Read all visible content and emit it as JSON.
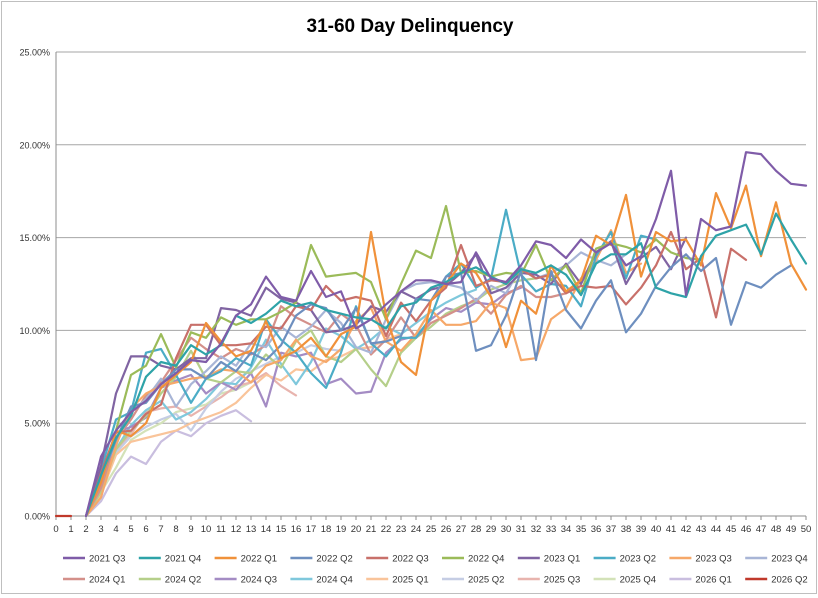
{
  "chart_data": {
    "type": "line",
    "title": "31-60 Day Delinquency",
    "xlabel": "",
    "ylabel": "",
    "x": [
      0,
      1,
      2,
      3,
      4,
      5,
      6,
      7,
      8,
      9,
      10,
      11,
      12,
      13,
      14,
      15,
      16,
      17,
      18,
      19,
      20,
      21,
      22,
      23,
      24,
      25,
      26,
      27,
      28,
      29,
      30,
      31,
      32,
      33,
      34,
      35,
      36,
      37,
      38,
      39,
      40,
      41,
      42,
      43,
      44,
      45,
      46,
      47,
      48,
      49,
      50
    ],
    "xlim": [
      0,
      50
    ],
    "ylim": [
      0,
      25
    ],
    "yticks": [
      0,
      5,
      10,
      15,
      20,
      25
    ],
    "ytick_labels": [
      "0.00%",
      "5.00%",
      "10.00%",
      "15.00%",
      "20.00%",
      "25.00%"
    ],
    "grid": "horizontal",
    "legend_position": "bottom",
    "series": [
      {
        "name": "2021 Q3",
        "color": "#7f5ca8",
        "values": [
          null,
          null,
          0,
          3.2,
          4.6,
          5.6,
          6.2,
          7.1,
          7.7,
          8.4,
          8.3,
          9.3,
          10.8,
          11.4,
          12.9,
          11.8,
          11.6,
          13.2,
          11.8,
          12.1,
          10.1,
          10.6,
          11.4,
          12.1,
          12.7,
          12.7,
          12.5,
          12.6,
          14.2,
          12.8,
          12.6,
          13.5,
          14.8,
          14.6,
          13.9,
          14.9,
          14.2,
          14.7,
          13.5,
          14.0,
          16.0,
          18.6,
          11.9,
          16.0,
          15.4,
          15.6,
          19.6,
          19.5,
          18.6,
          17.9,
          17.8
        ]
      },
      {
        "name": "2021 Q4",
        "color": "#2ea3a8",
        "values": [
          null,
          null,
          0,
          2.2,
          4.2,
          5.4,
          7.5,
          8.3,
          8.1,
          9.2,
          8.7,
          9.2,
          10.8,
          10.4,
          10.9,
          11.6,
          11.3,
          11.5,
          11.1,
          10.9,
          10.7,
          10.6,
          10.1,
          11.3,
          11.5,
          12.3,
          12.6,
          13.1,
          13.4,
          12.9,
          12.5,
          13.3,
          13.1,
          13.5,
          13.0,
          11.9,
          13.6,
          14.1,
          14.1,
          14.7,
          12.3,
          12.0,
          11.8,
          14.0,
          15.1,
          15.4,
          15.7,
          14.1,
          16.3,
          14.9,
          13.6
        ]
      },
      {
        "name": "2022 Q1",
        "color": "#f0913a",
        "values": [
          null,
          null,
          0,
          1.8,
          4.6,
          4.3,
          5.0,
          6.9,
          7.6,
          8.3,
          10.4,
          9.4,
          8.6,
          8.9,
          10.5,
          8.5,
          8.9,
          9.6,
          8.6,
          9.8,
          10.2,
          15.3,
          10.8,
          8.3,
          7.6,
          11.6,
          12.5,
          13.6,
          13.1,
          11.8,
          9.1,
          11.6,
          10.9,
          13.5,
          12.1,
          12.7,
          15.1,
          14.6,
          17.3,
          12.9,
          15.3,
          14.8,
          14.9,
          13.5,
          17.4,
          15.5,
          17.8,
          14.0,
          16.9,
          13.6,
          12.2
        ]
      },
      {
        "name": "2022 Q2",
        "color": "#6e8fbf",
        "values": [
          null,
          null,
          0,
          2.0,
          4.1,
          5.9,
          6.1,
          7.1,
          7.9,
          7.9,
          7.4,
          8.3,
          7.8,
          8.8,
          8.4,
          9.2,
          10.8,
          11.4,
          11.2,
          10.0,
          11.2,
          9.3,
          9.4,
          9.7,
          11.7,
          11.6,
          12.9,
          13.1,
          8.9,
          9.2,
          10.8,
          13.2,
          8.4,
          13.2,
          11.1,
          10.1,
          11.6,
          12.7,
          9.9,
          10.9,
          12.4,
          13.4,
          14.1,
          13.2,
          13.9,
          10.3,
          12.6,
          12.3,
          13.0,
          13.5,
          null
        ]
      },
      {
        "name": "2022 Q3",
        "color": "#c8706a",
        "values": [
          null,
          null,
          0,
          2.3,
          4.5,
          4.6,
          5.5,
          6.0,
          8.5,
          10.3,
          10.3,
          9.2,
          9.2,
          9.3,
          10.2,
          10.1,
          11.3,
          11.1,
          12.4,
          11.6,
          11.8,
          11.6,
          9.7,
          11.5,
          10.5,
          11.6,
          12.3,
          14.6,
          12.4,
          12.7,
          12.6,
          13.3,
          12.8,
          13.0,
          12.0,
          12.4,
          12.3,
          12.4,
          11.4,
          12.3,
          13.5,
          15.3,
          13.3,
          13.9,
          10.7,
          14.4,
          13.8,
          null,
          null,
          null,
          null
        ]
      },
      {
        "name": "2022 Q4",
        "color": "#9bbb59",
        "values": [
          null,
          null,
          0,
          1.9,
          4.6,
          7.6,
          8.1,
          9.8,
          8.0,
          9.9,
          9.6,
          10.7,
          10.3,
          10.6,
          10.6,
          11.0,
          11.5,
          14.6,
          12.9,
          13.0,
          13.1,
          12.6,
          10.6,
          12.5,
          14.3,
          13.9,
          16.7,
          13.1,
          13.2,
          12.9,
          13.1,
          13.0,
          14.6,
          12.7,
          13.5,
          12.0,
          14.4,
          14.7,
          14.5,
          14.2,
          14.9,
          14.2,
          13.9,
          13.8,
          null,
          null,
          null,
          null,
          null,
          null,
          null
        ]
      },
      {
        "name": "2023 Q1",
        "color": "#8064a2",
        "values": [
          null,
          null,
          0,
          2.7,
          6.6,
          8.6,
          8.6,
          8.1,
          7.9,
          8.5,
          8.5,
          11.2,
          11.1,
          10.8,
          12.3,
          11.7,
          11.5,
          11.1,
          9.9,
          10.0,
          10.3,
          11.3,
          11.0,
          12.1,
          11.7,
          12.2,
          12.4,
          13.1,
          14.1,
          12.0,
          12.3,
          13.1,
          13.0,
          12.5,
          13.6,
          12.5,
          14.2,
          14.8,
          12.5,
          13.9,
          14.5,
          13.3,
          15.0,
          null,
          null,
          null,
          null,
          null,
          null,
          null,
          null
        ]
      },
      {
        "name": "2023 Q2",
        "color": "#4bacc6",
        "values": [
          null,
          null,
          0,
          2.5,
          5.2,
          5.6,
          8.8,
          9.0,
          7.6,
          6.1,
          7.4,
          7.8,
          8.5,
          8.1,
          10.6,
          9.5,
          8.8,
          7.7,
          6.9,
          8.8,
          11.3,
          9.3,
          8.6,
          9.6,
          9.6,
          10.7,
          12.9,
          13.6,
          12.3,
          12.8,
          16.5,
          13.0,
          12.1,
          12.5,
          12.4,
          11.3,
          14.0,
          15.3,
          12.8,
          15.1,
          14.9,
          null,
          null,
          null,
          null,
          null,
          null,
          null,
          null,
          null,
          null
        ]
      },
      {
        "name": "2023 Q3",
        "color": "#f6a869",
        "values": [
          null,
          null,
          0,
          1.0,
          3.8,
          5.8,
          6.6,
          7.0,
          7.2,
          7.4,
          7.5,
          7.9,
          7.8,
          7.2,
          8.1,
          8.4,
          9.5,
          8.6,
          8.3,
          9.0,
          10.5,
          11.2,
          9.4,
          8.9,
          9.8,
          11.1,
          10.3,
          10.3,
          10.5,
          11.5,
          11.2,
          8.4,
          8.5,
          10.6,
          11.2,
          12.8,
          13.8,
          15.4,
          13.1,
          13.6,
          null,
          null,
          null,
          null,
          null,
          null,
          null,
          null,
          null,
          null,
          null
        ]
      },
      {
        "name": "2023 Q4",
        "color": "#a8b5d6",
        "values": [
          null,
          null,
          0,
          2.2,
          3.9,
          5.6,
          6.3,
          7.4,
          5.9,
          7.1,
          7.8,
          8.6,
          8.1,
          9.3,
          9.1,
          10.2,
          9.6,
          10.2,
          11.1,
          10.4,
          9.1,
          8.8,
          10.6,
          12.1,
          12.5,
          12.6,
          12.5,
          12.3,
          11.6,
          12.4,
          12.0,
          13.4,
          12.8,
          13.1,
          13.5,
          14.2,
          13.8,
          13.5,
          14.1,
          null,
          null,
          null,
          null,
          null,
          null,
          null,
          null,
          null,
          null,
          null,
          null
        ]
      },
      {
        "name": "2024 Q1",
        "color": "#d4908a",
        "values": [
          null,
          null,
          0,
          1.5,
          4.1,
          5.2,
          6.5,
          7.2,
          8.4,
          9.6,
          9.0,
          8.5,
          9.0,
          8.7,
          9.2,
          11.3,
          10.7,
          10.3,
          9.9,
          10.9,
          10.3,
          8.7,
          9.5,
          10.7,
          9.6,
          10.4,
          10.8,
          11.2,
          11.7,
          10.9,
          11.9,
          12.4,
          11.8,
          11.8,
          12.0,
          12.6,
          13.7,
          null,
          null,
          null,
          null,
          null,
          null,
          null,
          null,
          null,
          null,
          null,
          null,
          null,
          null
        ]
      },
      {
        "name": "2024 Q2",
        "color": "#b5cf8a",
        "values": [
          null,
          null,
          0,
          1.3,
          3.6,
          4.6,
          5.4,
          6.6,
          7.5,
          8.9,
          7.4,
          7.2,
          7.8,
          7.7,
          8.7,
          8.0,
          9.4,
          10.0,
          8.6,
          8.3,
          9.0,
          7.9,
          7.0,
          8.8,
          9.6,
          10.2,
          10.9,
          11.3,
          11.6,
          12.2,
          12.5,
          12.7,
          12.8,
          13.0,
          null,
          null,
          null,
          null,
          null,
          null,
          null,
          null,
          null,
          null,
          null,
          null,
          null,
          null,
          null,
          null,
          null
        ]
      },
      {
        "name": "2024 Q3",
        "color": "#a48cc4",
        "values": [
          null,
          null,
          0,
          1.7,
          4.5,
          4.8,
          5.3,
          6.9,
          7.3,
          7.6,
          6.6,
          7.2,
          6.8,
          7.7,
          5.9,
          8.8,
          8.6,
          8.8,
          7.1,
          7.4,
          6.6,
          6.7,
          8.8,
          9.5,
          9.7,
          10.6,
          11.2,
          11.0,
          11.5,
          11.4,
          12.0,
          12.3,
          null,
          null,
          null,
          null,
          null,
          null,
          null,
          null,
          null,
          null,
          null,
          null,
          null,
          null,
          null,
          null,
          null,
          null,
          null
        ]
      },
      {
        "name": "2024 Q4",
        "color": "#7fc8dc",
        "values": [
          null,
          null,
          0,
          1.6,
          3.6,
          4.9,
          5.7,
          6.2,
          5.2,
          5.6,
          6.3,
          7.2,
          7.1,
          8.0,
          9.5,
          8.2,
          7.1,
          8.3,
          10.1,
          9.7,
          9.0,
          9.5,
          10.2,
          9.8,
          10.4,
          11.0,
          11.5,
          11.9,
          12.2,
          null,
          null,
          null,
          null,
          null,
          null,
          null,
          null,
          null,
          null,
          null,
          null,
          null,
          null,
          null,
          null,
          null,
          null,
          null,
          null,
          null,
          null
        ]
      },
      {
        "name": "2025 Q1",
        "color": "#f9c49a",
        "values": [
          null,
          null,
          0,
          1.2,
          3.3,
          4.0,
          4.2,
          4.4,
          4.6,
          5.0,
          5.3,
          5.6,
          6.1,
          6.9,
          7.6,
          7.3,
          7.9,
          7.8,
          8.4,
          8.6,
          9.0,
          9.1,
          9.5,
          9.8,
          null,
          null,
          null,
          null,
          null,
          null,
          null,
          null,
          null,
          null,
          null,
          null,
          null,
          null,
          null,
          null,
          null,
          null,
          null,
          null,
          null,
          null,
          null,
          null,
          null,
          null,
          null
        ]
      },
      {
        "name": "2025 Q2",
        "color": "#c5cde4",
        "values": [
          null,
          null,
          0,
          1.5,
          3.4,
          4.3,
          4.8,
          5.2,
          5.5,
          4.6,
          5.8,
          6.7,
          7.4,
          7.8,
          8.2,
          8.6,
          8.8,
          9.2,
          9.0,
          8.9,
          null,
          null,
          null,
          null,
          null,
          null,
          null,
          null,
          null,
          null,
          null,
          null,
          null,
          null,
          null,
          null,
          null,
          null,
          null,
          null,
          null,
          null,
          null,
          null,
          null,
          null,
          null,
          null,
          null,
          null,
          null
        ]
      },
      {
        "name": "2025 Q3",
        "color": "#e8b4ae",
        "values": [
          null,
          null,
          0,
          1.4,
          3.5,
          4.4,
          5.6,
          5.8,
          5.9,
          5.4,
          5.9,
          6.4,
          7.0,
          7.2,
          7.7,
          7.0,
          6.5,
          null,
          null,
          null,
          null,
          null,
          null,
          null,
          null,
          null,
          null,
          null,
          null,
          null,
          null,
          null,
          null,
          null,
          null,
          null,
          null,
          null,
          null,
          null,
          null,
          null,
          null,
          null,
          null,
          null,
          null,
          null,
          null,
          null,
          null
        ]
      },
      {
        "name": "2025 Q4",
        "color": "#d3e2b8",
        "values": [
          null,
          null,
          0,
          1.3,
          2.6,
          4.1,
          4.6,
          5.0,
          5.6,
          5.8,
          6.0,
          6.6,
          6.8,
          7.2,
          null,
          null,
          null,
          null,
          null,
          null,
          null,
          null,
          null,
          null,
          null,
          null,
          null,
          null,
          null,
          null,
          null,
          null,
          null,
          null,
          null,
          null,
          null,
          null,
          null,
          null,
          null,
          null,
          null,
          null,
          null,
          null,
          null,
          null,
          null,
          null,
          null
        ]
      },
      {
        "name": "2026 Q1",
        "color": "#c9bedf",
        "values": [
          null,
          null,
          0,
          0.8,
          2.3,
          3.2,
          2.8,
          4.0,
          4.6,
          4.3,
          5.0,
          5.4,
          5.7,
          5.1,
          null,
          null,
          null,
          null,
          null,
          null,
          null,
          null,
          null,
          null,
          null,
          null,
          null,
          null,
          null,
          null,
          null,
          null,
          null,
          null,
          null,
          null,
          null,
          null,
          null,
          null,
          null,
          null,
          null,
          null,
          null,
          null,
          null,
          null,
          null,
          null,
          null
        ]
      },
      {
        "name": "2026 Q2",
        "color": "#c0392b",
        "values": [
          0,
          0,
          null,
          null,
          null,
          null,
          null,
          null,
          null,
          null,
          null,
          null,
          null,
          null,
          null,
          null,
          null,
          null,
          null,
          null,
          null,
          null,
          null,
          null,
          null,
          null,
          null,
          null,
          null,
          null,
          null,
          null,
          null,
          null,
          null,
          null,
          null,
          null,
          null,
          null,
          null,
          null,
          null,
          null,
          null,
          null,
          null,
          null,
          null,
          null,
          null
        ]
      }
    ]
  }
}
